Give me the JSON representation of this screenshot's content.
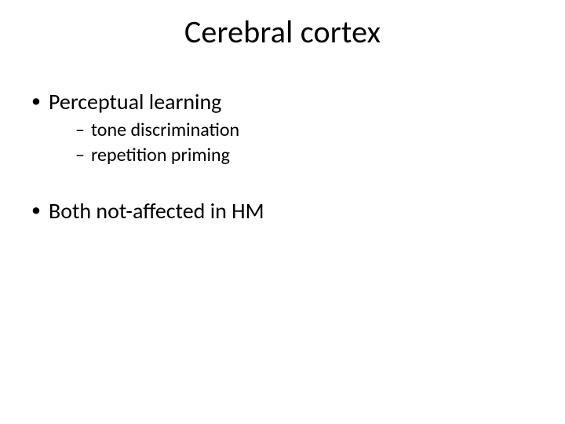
{
  "slide": {
    "title": "Cerebral cortex",
    "bullets": [
      {
        "text": "Perceptual learning",
        "children": [
          {
            "text": "tone discrimination"
          },
          {
            "text": "repetition priming"
          }
        ]
      },
      {
        "text": "Both not-affected in HM",
        "children": []
      }
    ]
  },
  "style": {
    "background_color": "#ffffff",
    "text_color": "#000000",
    "title_fontsize": 40,
    "body_fontsize_level1": 28,
    "body_fontsize_level2": 24,
    "font_family": "Calibri",
    "bullet_glyph_level1": "•",
    "bullet_glyph_level2": "–",
    "slide_width": 720,
    "slide_height": 540
  }
}
